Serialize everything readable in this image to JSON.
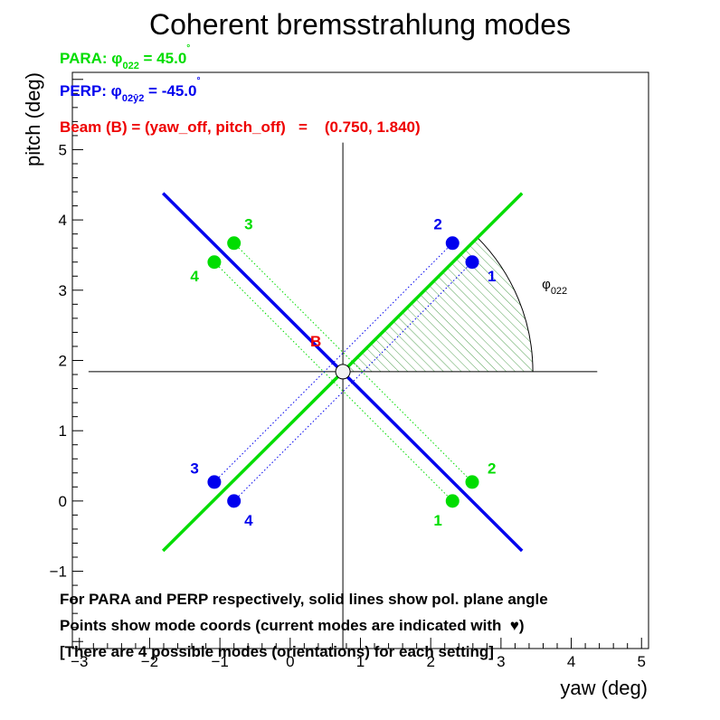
{
  "chart_data": {
    "type": "scatter",
    "title": "Coherent bremsstrahlung modes",
    "xlabel": "yaw (deg)",
    "ylabel": "pitch (deg)",
    "xlim": [
      -3.1,
      5.1
    ],
    "ylim": [
      -2.1,
      6.1
    ],
    "x_ticks": [
      -3,
      -2,
      -1,
      0,
      1,
      2,
      3,
      4,
      5
    ],
    "y_ticks": [
      -1,
      0,
      1,
      2,
      3,
      4,
      5
    ],
    "x_tick_labels": [
      "−3",
      "−2",
      "−1",
      "0",
      "1",
      "2",
      "3",
      "4",
      "5"
    ],
    "y_tick_labels": [
      "−1",
      "0",
      "1",
      "2",
      "3",
      "4",
      "5"
    ],
    "beam": {
      "x": 0.75,
      "y": 1.84,
      "label": "B"
    },
    "info": {
      "para_prefix": "PARA: φ",
      "para_sub": "022",
      "para_value": " = 45.0",
      "perp_prefix": "PERP: φ",
      "perp_sub": "02ŷ2",
      "perp_value": " = -45.0",
      "degree_mark": "°",
      "beam_line": "Beam (B) = (yaw_off, pitch_off)   =    (0.750, 1.840)"
    },
    "notes": [
      "For PARA and PERP respectively, solid lines show pol. plane angle",
      "Points show mode coords (current modes are indicated with  ♥)",
      "[There are 4 possible modes (orientations) for each setting]"
    ],
    "angle_label": {
      "prefix": "φ",
      "sub": "022"
    },
    "pol_lines": [
      {
        "name": "PARA",
        "color": "#00dd00",
        "from": [
          -1.81,
          -0.71
        ],
        "to": [
          3.3,
          4.38
        ]
      },
      {
        "name": "PERP",
        "color": "#0000ee",
        "from": [
          -1.81,
          4.38
        ],
        "to": [
          3.3,
          -0.71
        ]
      }
    ],
    "axes_cross": {
      "horizontal": {
        "y": 1.84,
        "x_from": -2.87,
        "x_to": 4.37
      },
      "vertical": {
        "x": 0.75,
        "y_from": -2.1,
        "y_to": 5.1
      }
    },
    "series": [
      {
        "name": "PARA",
        "color": "#00dd00",
        "points": [
          {
            "x": 2.31,
            "y": 0.0,
            "label": "1"
          },
          {
            "x": 2.59,
            "y": 0.27,
            "label": "2"
          },
          {
            "x": -0.8,
            "y": 3.67,
            "label": "3"
          },
          {
            "x": -1.08,
            "y": 3.4,
            "label": "4"
          }
        ]
      },
      {
        "name": "PERP",
        "color": "#0000ee",
        "points": [
          {
            "x": 2.59,
            "y": 3.4,
            "label": "1"
          },
          {
            "x": 2.31,
            "y": 3.67,
            "label": "2"
          },
          {
            "x": -1.08,
            "y": 0.27,
            "label": "3"
          },
          {
            "x": -0.8,
            "y": 0.0,
            "label": "4"
          }
        ]
      }
    ]
  }
}
